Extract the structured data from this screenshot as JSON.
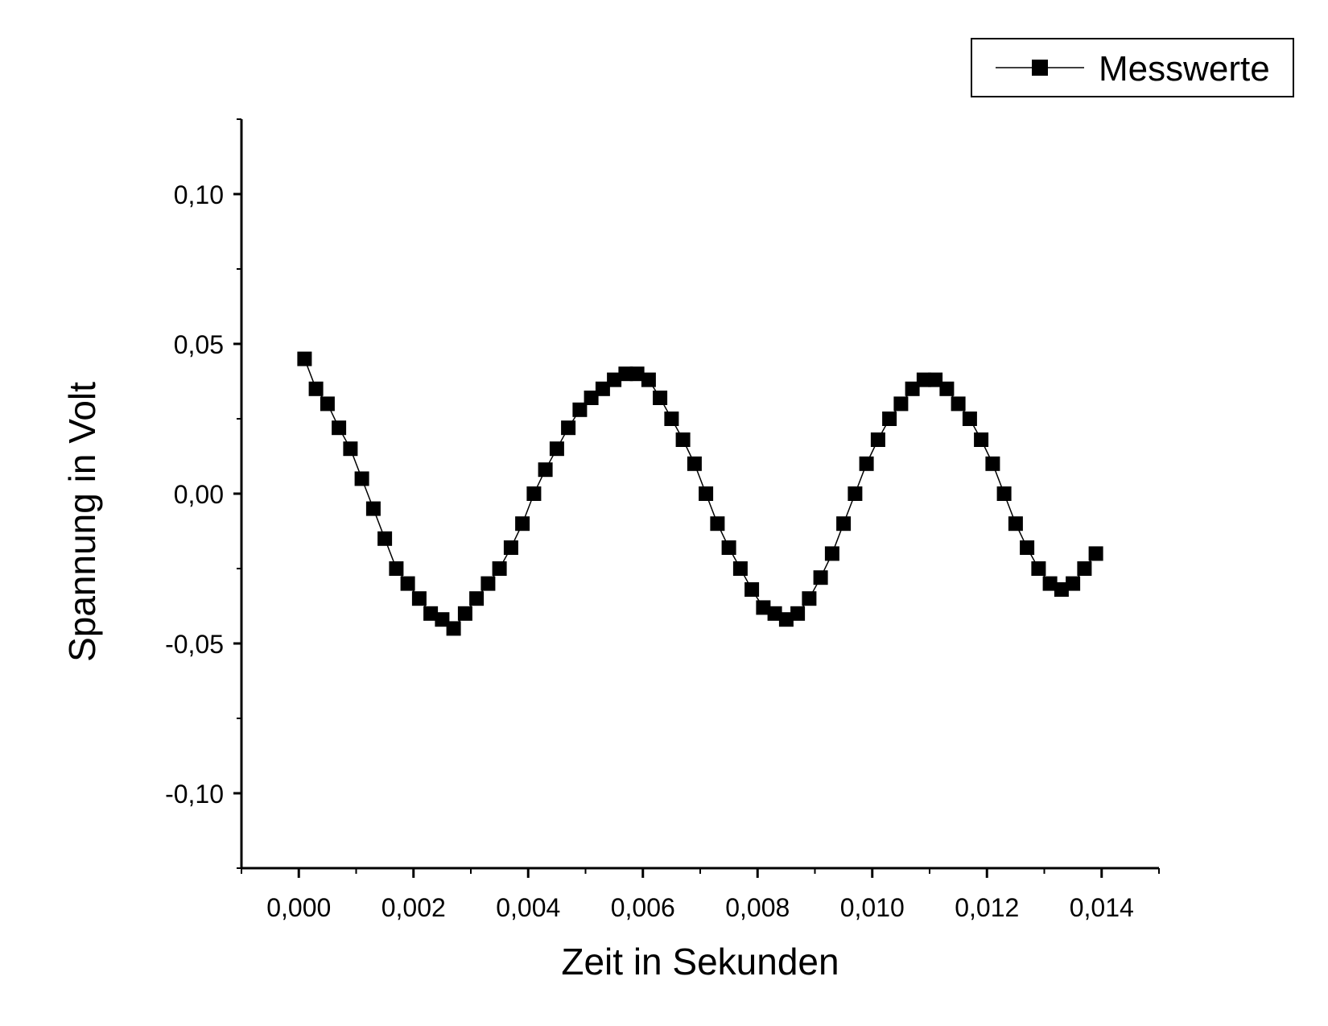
{
  "chart_data": {
    "type": "line",
    "title": "",
    "xlabel": "Zeit in Sekunden",
    "ylabel": "Spannung in Volt",
    "xlim": [
      -0.001,
      0.015
    ],
    "ylim": [
      -0.125,
      0.125
    ],
    "grid": false,
    "legend_position": "top-right",
    "x_ticks": [
      0.0,
      0.002,
      0.004,
      0.006,
      0.008,
      0.01,
      0.012,
      0.014
    ],
    "x_tick_labels": [
      "0,000",
      "0,002",
      "0,004",
      "0,006",
      "0,008",
      "0,010",
      "0,012",
      "0,014"
    ],
    "y_ticks": [
      -0.1,
      -0.05,
      0.0,
      0.05,
      0.1
    ],
    "y_tick_labels": [
      "-0,10",
      "-0,05",
      "0,00",
      "0,05",
      "0,10"
    ],
    "series": [
      {
        "name": "Messwerte",
        "color": "#000000",
        "marker": "square",
        "x": [
          0.0001,
          0.0003,
          0.0005,
          0.0007,
          0.0009,
          0.0011,
          0.0013,
          0.0015,
          0.0017,
          0.0019,
          0.0021,
          0.0023,
          0.0025,
          0.0027,
          0.0029,
          0.0031,
          0.0033,
          0.0035,
          0.0037,
          0.0039,
          0.0041,
          0.0043,
          0.0045,
          0.0047,
          0.0049,
          0.0051,
          0.0053,
          0.0055,
          0.0057,
          0.0059,
          0.0061,
          0.0063,
          0.0065,
          0.0067,
          0.0069,
          0.0071,
          0.0073,
          0.0075,
          0.0077,
          0.0079,
          0.0081,
          0.0083,
          0.0085,
          0.0087,
          0.0089,
          0.0091,
          0.0093,
          0.0095,
          0.0097,
          0.0099,
          0.0101,
          0.0103,
          0.0105,
          0.0107,
          0.0109,
          0.0111,
          0.0113,
          0.0115,
          0.0117,
          0.0119,
          0.0121,
          0.0123,
          0.0125,
          0.0127,
          0.0129,
          0.0131,
          0.0133,
          0.0135,
          0.0137,
          0.0139
        ],
        "y": [
          0.045,
          0.035,
          0.03,
          0.022,
          0.015,
          0.005,
          -0.005,
          -0.015,
          -0.025,
          -0.03,
          -0.035,
          -0.04,
          -0.042,
          -0.045,
          -0.04,
          -0.035,
          -0.03,
          -0.025,
          -0.018,
          -0.01,
          0.0,
          0.008,
          0.015,
          0.022,
          0.028,
          0.032,
          0.035,
          0.038,
          0.04,
          0.04,
          0.038,
          0.032,
          0.025,
          0.018,
          0.01,
          0.0,
          -0.01,
          -0.018,
          -0.025,
          -0.032,
          -0.038,
          -0.04,
          -0.042,
          -0.04,
          -0.035,
          -0.028,
          -0.02,
          -0.01,
          0.0,
          0.01,
          0.018,
          0.025,
          0.03,
          0.035,
          0.038,
          0.038,
          0.035,
          0.03,
          0.025,
          0.018,
          0.01,
          0.0,
          -0.01,
          -0.018,
          -0.025,
          -0.03,
          -0.032,
          -0.03,
          -0.025,
          -0.02
        ]
      }
    ]
  }
}
